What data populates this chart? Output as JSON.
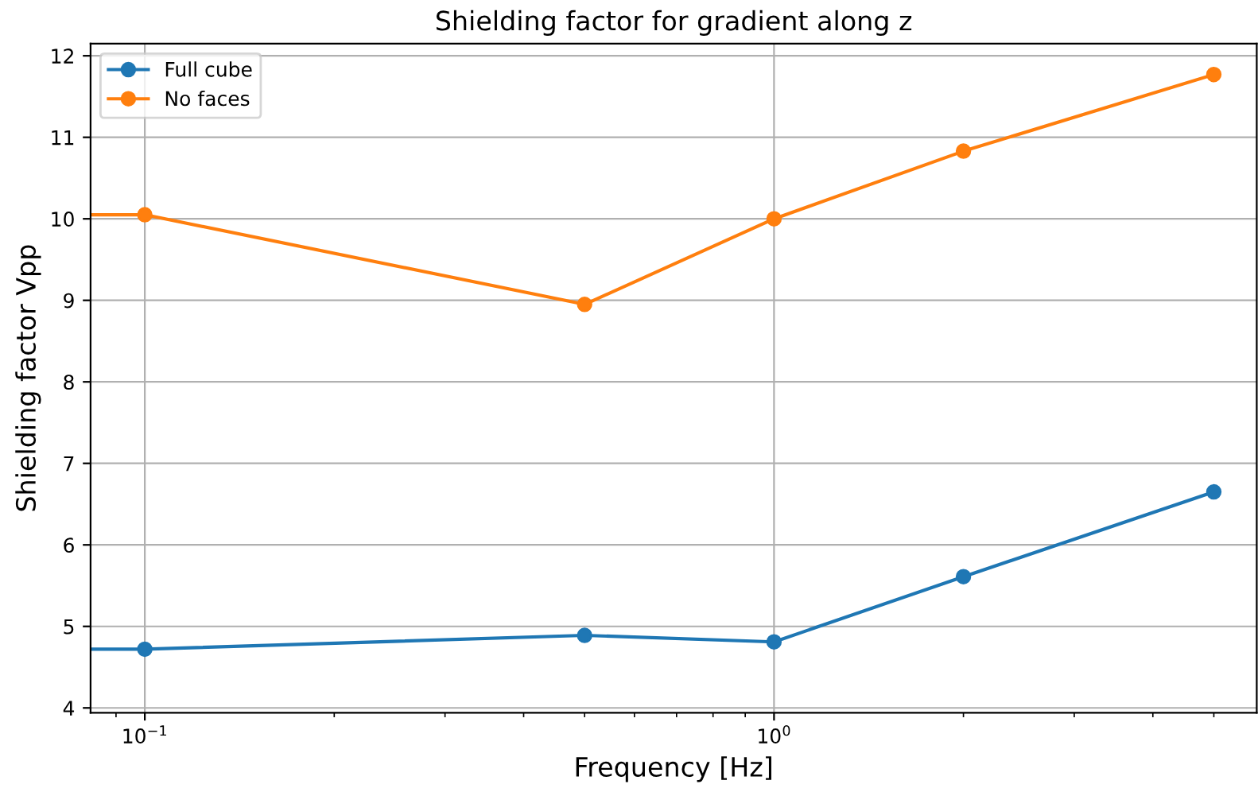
{
  "chart_data": {
    "type": "line",
    "title": "Shielding factor for gradient along z",
    "xlabel": "Frequency [Hz]",
    "ylabel": "Shielding factor Vpp",
    "x": [
      0.082,
      0.1,
      0.5,
      1,
      2,
      5
    ],
    "series": [
      {
        "name": "Full cube",
        "color": "#1f77b4",
        "values": [
          4.72,
          4.72,
          4.89,
          4.81,
          5.61,
          6.65
        ]
      },
      {
        "name": "No faces",
        "color": "#ff7f0e",
        "values": [
          10.05,
          10.05,
          8.95,
          10.0,
          10.83,
          11.77
        ]
      }
    ],
    "log": "x",
    "xlim": [
      0.082,
      5.85
    ],
    "xticks": [
      {
        "value": 0.1,
        "label": "10$^{−1}$"
      },
      {
        "value": 1,
        "label": "10$^{0}$"
      }
    ],
    "ylim": [
      3.94,
      12.15
    ],
    "yticks": [
      4,
      5,
      6,
      7,
      8,
      9,
      10,
      11,
      12
    ],
    "grid": true,
    "legend": "top left",
    "marker": "circle",
    "line_style": "solid"
  }
}
